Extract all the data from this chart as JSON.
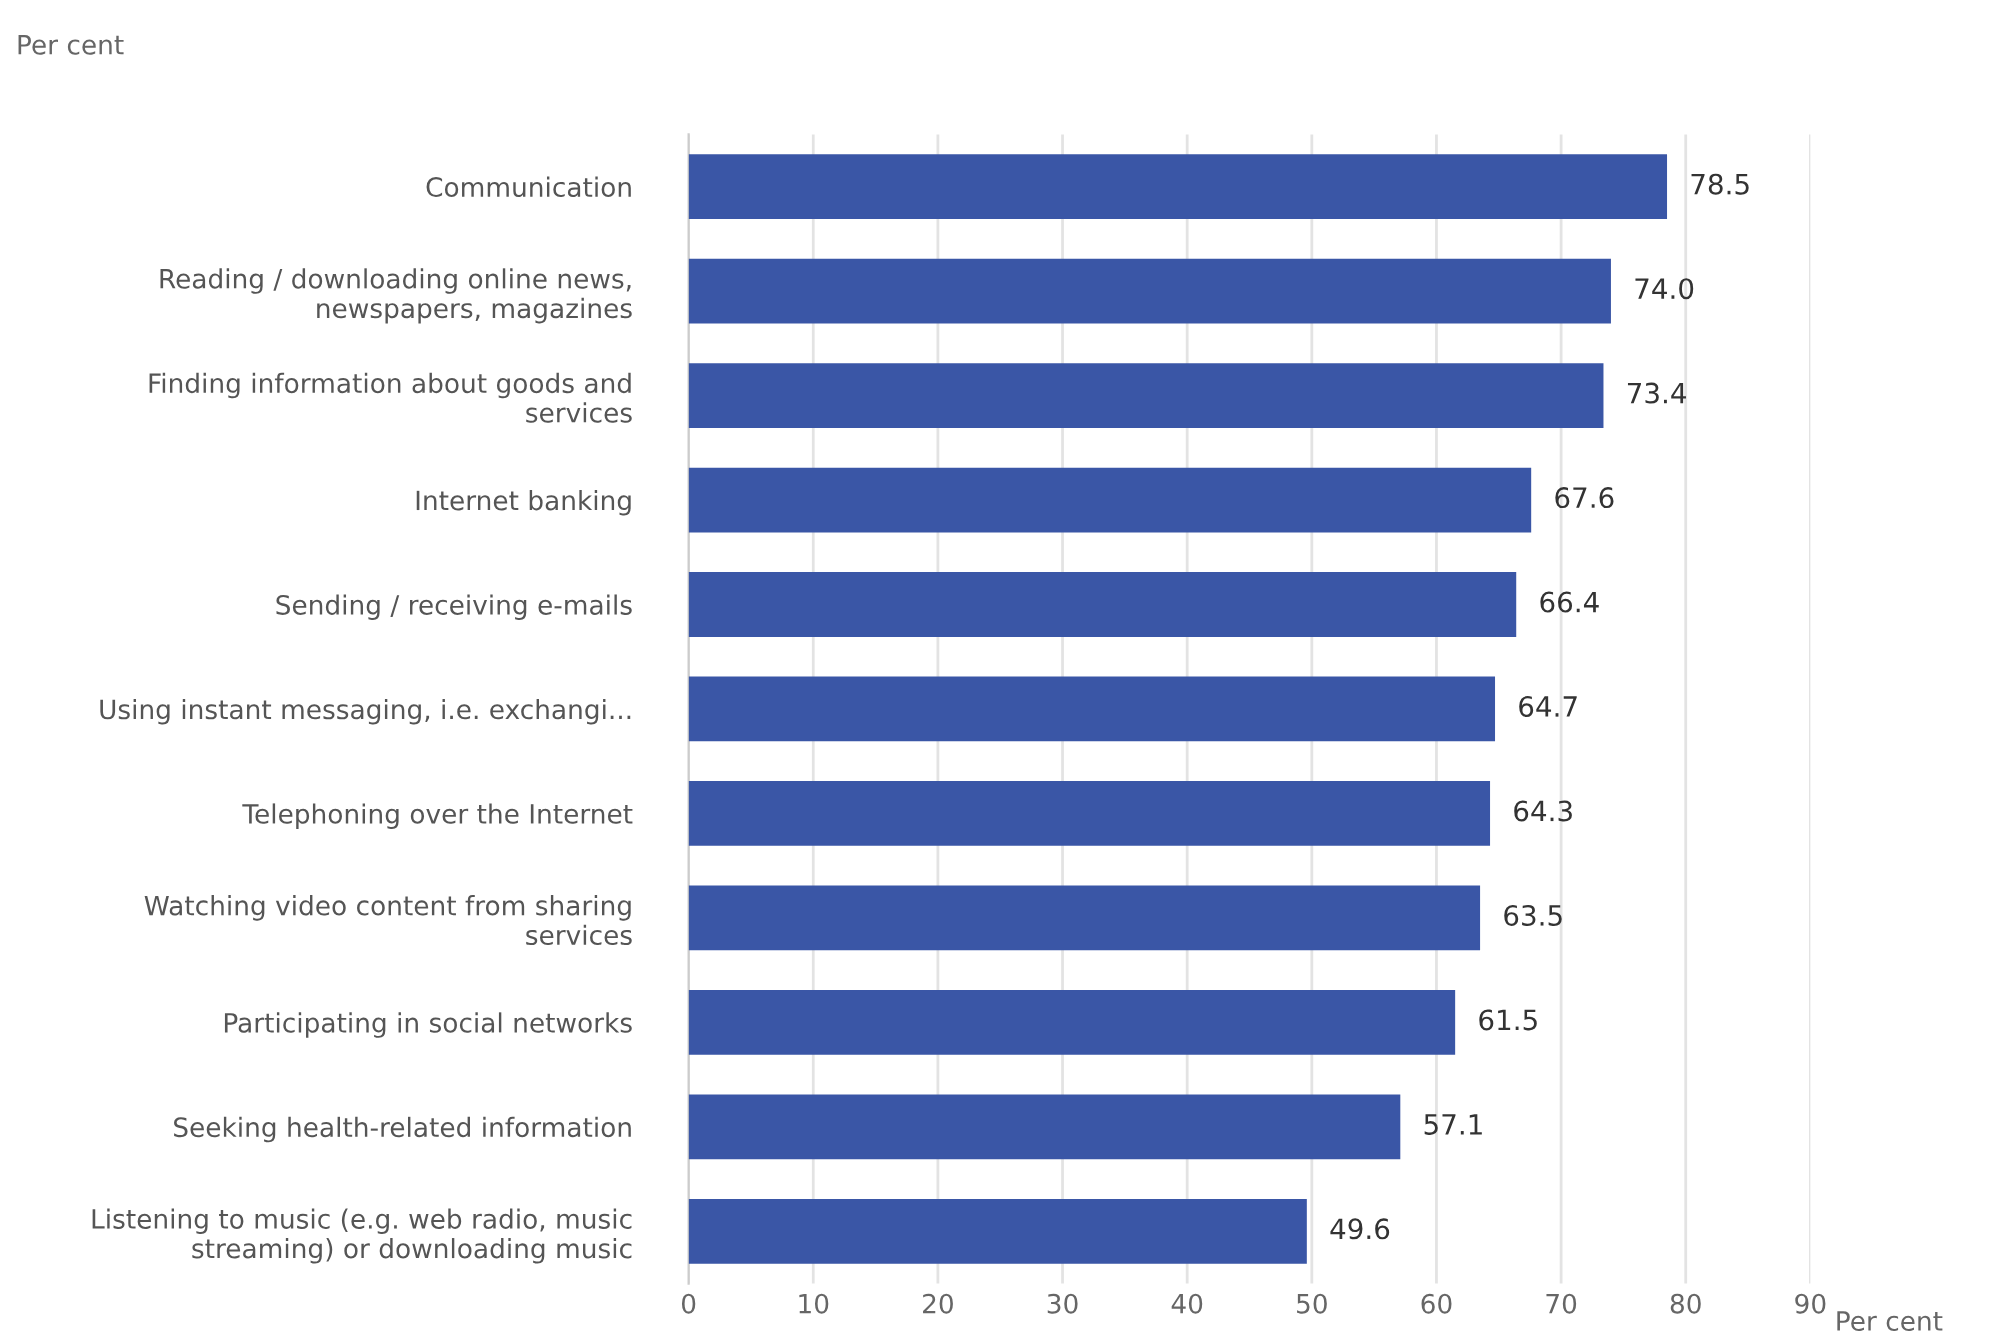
{
  "chart_data": {
    "type": "bar",
    "orientation": "horizontal",
    "ylabel": "Per cent",
    "xlabel": "Per cent",
    "categories": [
      "Communication",
      "Reading / downloading online news,\nnewspapers, magazines",
      "Finding information about goods and\nservices",
      "Internet banking",
      "Sending / receiving e-mails",
      "Using instant messaging, i.e. exchangi...",
      "Telephoning over the Internet",
      "Watching video content from sharing\nservices",
      "Participating in social networks",
      "Seeking health-related information",
      "Listening to music (e.g. web radio, music\nstreaming) or downloading music"
    ],
    "values": [
      78.5,
      74.0,
      73.4,
      67.6,
      66.4,
      64.7,
      64.3,
      63.5,
      61.5,
      57.1,
      49.6
    ],
    "value_labels": [
      "78.5",
      "74.0",
      "73.4",
      "67.6",
      "66.4",
      "64.7",
      "64.3",
      "63.5",
      "61.5",
      "57.1",
      "49.6"
    ],
    "color": "#3a56a6",
    "xlim": [
      0,
      90
    ],
    "xticks": [
      0,
      10,
      20,
      30,
      40,
      50,
      60,
      70,
      80,
      90
    ],
    "grid": "x",
    "legend": false
  }
}
